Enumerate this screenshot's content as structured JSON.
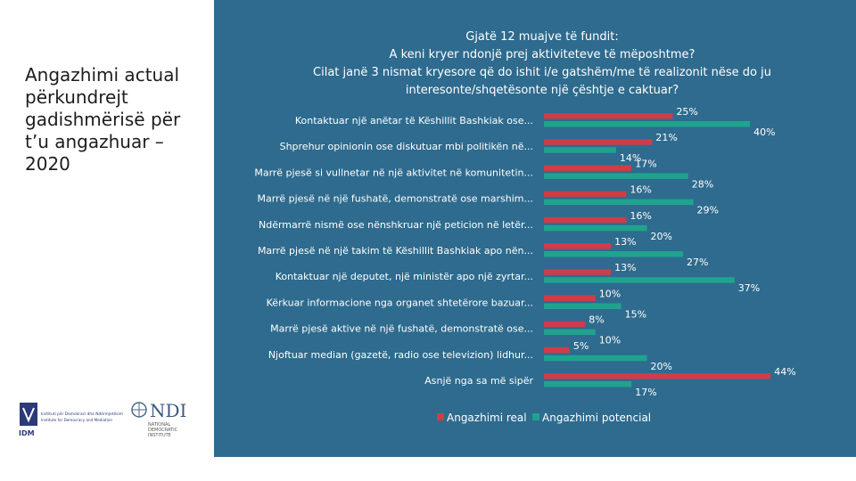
{
  "slide": {
    "title": "Angazhimi actual përkundrejt gadishmërisë për t’u angazhuar – 2020"
  },
  "logos": {
    "idm": {
      "abbr": "IDM",
      "line1": "Instituti për Demokraci dhe Ndërmjetësim",
      "line2": "Institute for Democracy and Mediation"
    },
    "ndi": {
      "abbr": "NDI",
      "line1": "NATIONAL",
      "line2": "DEMOCRATIC",
      "line3": "INSTITUTE"
    }
  },
  "colors": {
    "panel": "#2e6b8e",
    "real": "#cf3c4a",
    "potential": "#1fa38f"
  },
  "chart_data": {
    "type": "bar",
    "orientation": "horizontal",
    "title": [
      "Gjatë 12 muajve të fundit:",
      "A keni kryer ndonjë prej aktiviteteve të mëposhtme?",
      "Cilat janë 3 nismat kryesore që do ishit i/e gatshëm/me të realizonit nëse do ju",
      "interesonte/shqetësonte një çështje e caktuar?"
    ],
    "categories": [
      "Kontaktuar një anëtar të Këshillit Bashkiak ose...",
      "Shprehur opinionin ose diskutuar mbi politikën në...",
      "Marrë pjesë si vullnetar në një aktivitet në komunitetin...",
      "Marrë pjesë në një fushatë, demonstratë ose marshim...",
      "Ndërmarrë nismë ose nënshkruar një peticion në letër...",
      "Marrë pjesë në një takim të Këshillit Bashkiak apo nën...",
      "Kontaktuar një deputet, një ministër apo një zyrtar...",
      "Kërkuar informacione nga organet shtetërore bazuar...",
      "Marrë pjesë aktive në një fushatë, demonstratë ose...",
      "Njoftuar median (gazetë, radio ose televizion) lidhur...",
      "Asnjë nga sa më sipër"
    ],
    "series": [
      {
        "name": "Angazhimi real",
        "values": [
          25,
          21,
          17,
          16,
          16,
          13,
          13,
          10,
          8,
          5,
          44
        ]
      },
      {
        "name": "Angazhimi potencial",
        "values": [
          40,
          14,
          28,
          29,
          20,
          27,
          37,
          15,
          10,
          20,
          17
        ]
      }
    ],
    "value_suffix": "%",
    "xlim": [
      0,
      45
    ],
    "grid": false,
    "legend": "bottom"
  }
}
